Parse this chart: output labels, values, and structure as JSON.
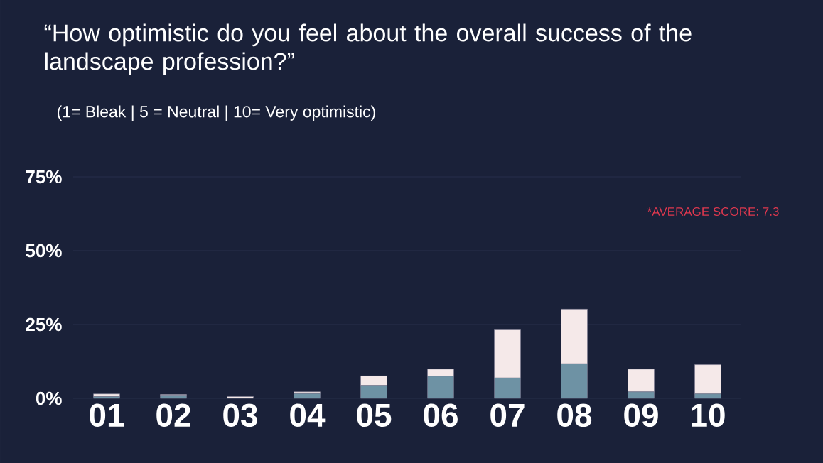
{
  "chart_data": {
    "type": "bar",
    "title": "“How optimistic do you feel about the overall success of the landscape profession?”",
    "subtitle": "(1= Bleak | 5 = Neutral | 10= Very optimistic)",
    "categories": [
      "01",
      "02",
      "03",
      "04",
      "05",
      "06",
      "07",
      "08",
      "09",
      "10"
    ],
    "stacked": true,
    "series": [
      {
        "color": "#6e92a4",
        "values": [
          0.6,
          1.0,
          0,
          1.6,
          4.4,
          7.5,
          6.9,
          11.7,
          2.2,
          1.5
        ]
      },
      {
        "color": "#f5e9e9",
        "values": [
          0.9,
          0.3,
          0.6,
          0.6,
          3.2,
          2.4,
          16.3,
          18.5,
          7.7,
          9.9
        ]
      }
    ],
    "ylim": [
      0,
      75
    ],
    "yticks": [
      {
        "value": 0,
        "label": "0%"
      },
      {
        "value": 25,
        "label": "25%"
      },
      {
        "value": 50,
        "label": "50%"
      },
      {
        "value": 75,
        "label": "75%"
      }
    ],
    "grid": "y",
    "annotations": [
      "*AVERAGE SCORE: 7.3"
    ]
  }
}
